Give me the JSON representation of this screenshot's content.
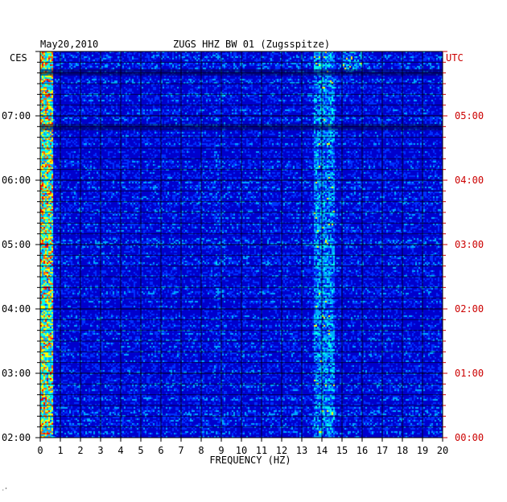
{
  "header": {
    "date": "May20,2010",
    "station": "ZUGS HHZ BW 01 (Zugsspitze)"
  },
  "left_zone_label": "CES",
  "right_zone_label": "UTC",
  "footer_mark": "·ʼ",
  "colors": {
    "background": "#ffffff",
    "plot_base": "#0000cc",
    "grid": "#000000",
    "left_text": "#000000",
    "right_text": "#cc0000"
  },
  "chart_data": {
    "type": "heatmap",
    "title": "ZUGS HHZ BW 01 (Zugsspitze)",
    "xlabel": "FREQUENCY (HZ)",
    "xlim": [
      0,
      20
    ],
    "x_ticks": [
      "0",
      "1",
      "2",
      "3",
      "4",
      "5",
      "6",
      "7",
      "8",
      "9",
      "10",
      "11",
      "12",
      "13",
      "14",
      "15",
      "16",
      "17",
      "18",
      "19",
      "20"
    ],
    "ylim_hours_from_bottom": [
      0,
      6
    ],
    "y_ticks_left": [
      "02:00",
      "03:00",
      "04:00",
      "05:00",
      "06:00",
      "07:00"
    ],
    "y_ticks_right": [
      "00:00",
      "01:00",
      "02:00",
      "03:00",
      "04:00",
      "05:00"
    ],
    "grid": true,
    "colormap": [
      "#0000cc",
      "#0033ff",
      "#00aaff",
      "#00ffee",
      "#ffff00",
      "#ff6600",
      "#ff0000"
    ]
  }
}
